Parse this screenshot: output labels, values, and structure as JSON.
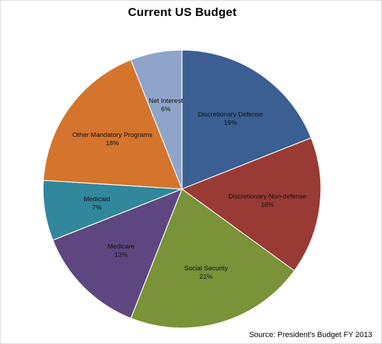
{
  "chart_data": {
    "type": "pie",
    "title": "Current US Budget",
    "source": "Source: President's Budget FY 2013",
    "slices": [
      {
        "label": "Discretionary Defense",
        "pct_label": "19%",
        "value": 19,
        "color": "#3b5f92"
      },
      {
        "label": "Discretionary Non-defense",
        "pct_label": "16%",
        "value": 16,
        "color": "#9a3a34"
      },
      {
        "label": "Social Security",
        "pct_label": "21%",
        "value": 21,
        "color": "#7a9238"
      },
      {
        "label": "Medicare",
        "pct_label": "13%",
        "value": 13,
        "color": "#5e4780"
      },
      {
        "label": "Medicaid",
        "pct_label": "7%",
        "value": 7,
        "color": "#31879b"
      },
      {
        "label": "Other Mandatory Programs",
        "pct_label": "18%",
        "value": 18,
        "color": "#d4742d"
      },
      {
        "label": "Net Interest",
        "pct_label": "6%",
        "value": 6,
        "color": "#8ea5c9"
      }
    ]
  }
}
